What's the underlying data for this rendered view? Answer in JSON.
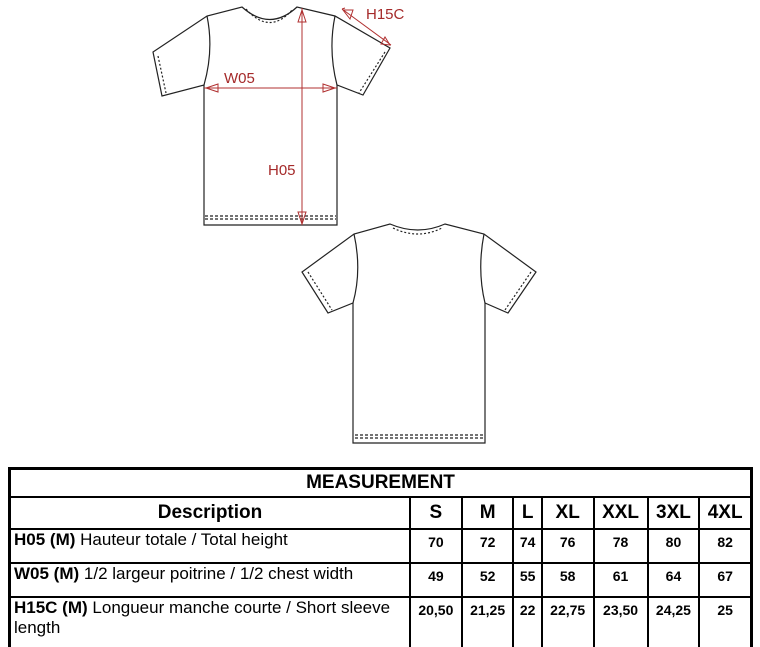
{
  "diagram": {
    "labels": {
      "h15c": "H15C",
      "w05": "W05",
      "h05": "H05"
    },
    "annotation_color": "#a52a2a"
  },
  "table": {
    "title": "MEASUREMENT",
    "description_header": "Description",
    "sizes": [
      "S",
      "M",
      "L",
      "XL",
      "XXL",
      "3XL",
      "4XL"
    ],
    "rows": [
      {
        "code": "H05 (M)",
        "label": "Hauteur totale / Total height",
        "values": [
          "70",
          "72",
          "74",
          "76",
          "78",
          "80",
          "82"
        ]
      },
      {
        "code": "W05 (M)",
        "label": "1/2 largeur poitrine / 1/2 chest width",
        "values": [
          "49",
          "52",
          "55",
          "58",
          "61",
          "64",
          "67"
        ]
      },
      {
        "code": "H15C (M)",
        "label": "Longueur manche courte / Short sleeve length",
        "values": [
          "20,50",
          "21,25",
          "22",
          "22,75",
          "23,50",
          "24,25",
          "25"
        ]
      }
    ]
  }
}
